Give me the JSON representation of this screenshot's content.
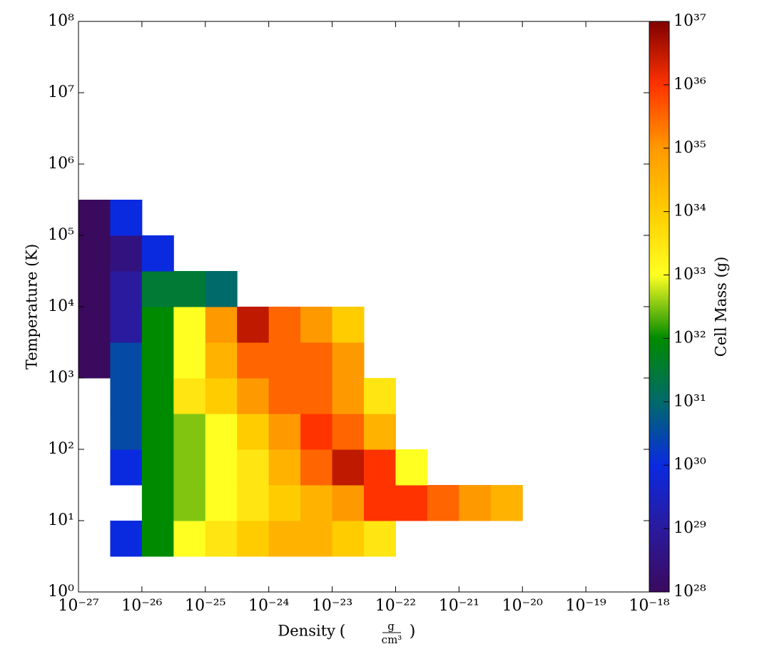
{
  "chart_data": {
    "type": "heatmap",
    "x_label": "Density",
    "x_unit_numerator": "g",
    "x_unit_denominator": "cm³",
    "y_label": "Temperature  (K)",
    "colorbar_label": "Cell Mass  (g)",
    "log_x": true,
    "log_y": true,
    "log_color": true,
    "xlim": [
      1e-27,
      1e-18
    ],
    "xticks": [
      {
        "value": 1e-27,
        "label": "10⁻²⁷"
      },
      {
        "value": 1e-26,
        "label": "10⁻²⁶"
      },
      {
        "value": 1e-25,
        "label": "10⁻²⁵"
      },
      {
        "value": 1e-24,
        "label": "10⁻²⁴"
      },
      {
        "value": 1e-23,
        "label": "10⁻²³"
      },
      {
        "value": 1e-22,
        "label": "10⁻²²"
      },
      {
        "value": 1e-21,
        "label": "10⁻²¹"
      },
      {
        "value": 1e-20,
        "label": "10⁻²⁰"
      },
      {
        "value": 1e-19,
        "label": "10⁻¹⁹"
      },
      {
        "value": 1e-18,
        "label": "10⁻¹⁸"
      }
    ],
    "ylim": [
      1,
      100000000.0
    ],
    "yticks": [
      {
        "value": 1,
        "label": "10⁰"
      },
      {
        "value": 10,
        "label": "10¹"
      },
      {
        "value": 100,
        "label": "10²"
      },
      {
        "value": 1000,
        "label": "10³"
      },
      {
        "value": 10000,
        "label": "10⁴"
      },
      {
        "value": 100000,
        "label": "10⁵"
      },
      {
        "value": 1000000,
        "label": "10⁶"
      },
      {
        "value": 10000000,
        "label": "10⁷"
      },
      {
        "value": 100000000,
        "label": "10⁸"
      }
    ],
    "clim": [
      1e+28,
      1e+37
    ],
    "cticks": [
      {
        "value": 1e+28,
        "label": "10²⁸"
      },
      {
        "value": 1e+29,
        "label": "10²⁹"
      },
      {
        "value": 1e+30,
        "label": "10³⁰"
      },
      {
        "value": 1e+31,
        "label": "10³¹"
      },
      {
        "value": 1e+32,
        "label": "10³²"
      },
      {
        "value": 1e+33,
        "label": "10³³"
      },
      {
        "value": 1e+34,
        "label": "10³⁴"
      },
      {
        "value": 1e+35,
        "label": "10³⁵"
      },
      {
        "value": 1e+36,
        "label": "10³⁶"
      },
      {
        "value": 1e+37,
        "label": "10³⁷"
      }
    ],
    "colormap": [
      "#3a0a5e",
      "#2a1a9e",
      "#0a2ae0",
      "#006a6a",
      "#008a00",
      "#ffff22",
      "#ffcc00",
      "#ff9900",
      "#ff3300",
      "#800000"
    ],
    "x_bins": [
      1e-27,
      3.162e-27,
      1e-26,
      3.162e-26,
      1e-25,
      3.162e-25,
      1e-24,
      3.162e-24,
      1e-23,
      3.162e-23,
      1e-22,
      3.162e-22,
      1e-21,
      3.162e-21,
      1e-20,
      3.162e-20
    ],
    "y_bins": [
      3.162,
      10,
      31.62,
      100,
      316.2,
      1000,
      3162,
      10000,
      31623,
      100000,
      316228
    ],
    "values": [
      [
        null,
        1e+30,
        1e+32,
        1e+33,
        3.2e+33,
        1e+34,
        3.2e+34,
        3.2e+34,
        1e+34,
        3.2e+33,
        null,
        null,
        null,
        null,
        null
      ],
      [
        null,
        null,
        1e+32,
        3.2e+32,
        1e+33,
        3.2e+33,
        1e+34,
        3.2e+34,
        1e+35,
        1e+36,
        1e+36,
        3.2e+35,
        1e+35,
        3.2e+34,
        null
      ],
      [
        null,
        1e+30,
        1e+32,
        3.2e+32,
        1e+33,
        3.2e+33,
        3.2e+34,
        3.2e+35,
        3.2e+36,
        1e+36,
        1e+33,
        null,
        null,
        null,
        null
      ],
      [
        null,
        3.2e+30,
        1e+32,
        3.2e+32,
        1e+33,
        1e+34,
        1e+35,
        1e+36,
        3.2e+35,
        3.2e+34,
        null,
        null,
        null,
        null,
        null
      ],
      [
        null,
        3.2e+30,
        1e+32,
        3.2e+33,
        1e+34,
        1e+35,
        3.2e+35,
        3.2e+35,
        1e+35,
        3.2e+33,
        null,
        null,
        null,
        null,
        null
      ],
      [
        1e+28,
        3.2e+30,
        1e+32,
        1e+33,
        3.2e+34,
        3.2e+35,
        3.2e+35,
        3.2e+35,
        1e+35,
        null,
        null,
        null,
        null,
        null,
        null
      ],
      [
        1e+28,
        1e+29,
        1e+32,
        1e+33,
        1e+35,
        3.2e+36,
        3.2e+35,
        1e+35,
        1e+34,
        null,
        null,
        null,
        null,
        null,
        null
      ],
      [
        1e+28,
        1e+29,
        3.2e+31,
        3.2e+31,
        1e+31,
        null,
        null,
        null,
        null,
        null,
        null,
        null,
        null,
        null,
        null
      ],
      [
        1e+28,
        3.2e+28,
        1e+30,
        null,
        null,
        null,
        null,
        null,
        null,
        null,
        null,
        null,
        null,
        null,
        null
      ],
      [
        1e+28,
        1e+30,
        null,
        null,
        null,
        null,
        null,
        null,
        null,
        null,
        null,
        null,
        null,
        null,
        null
      ]
    ]
  }
}
